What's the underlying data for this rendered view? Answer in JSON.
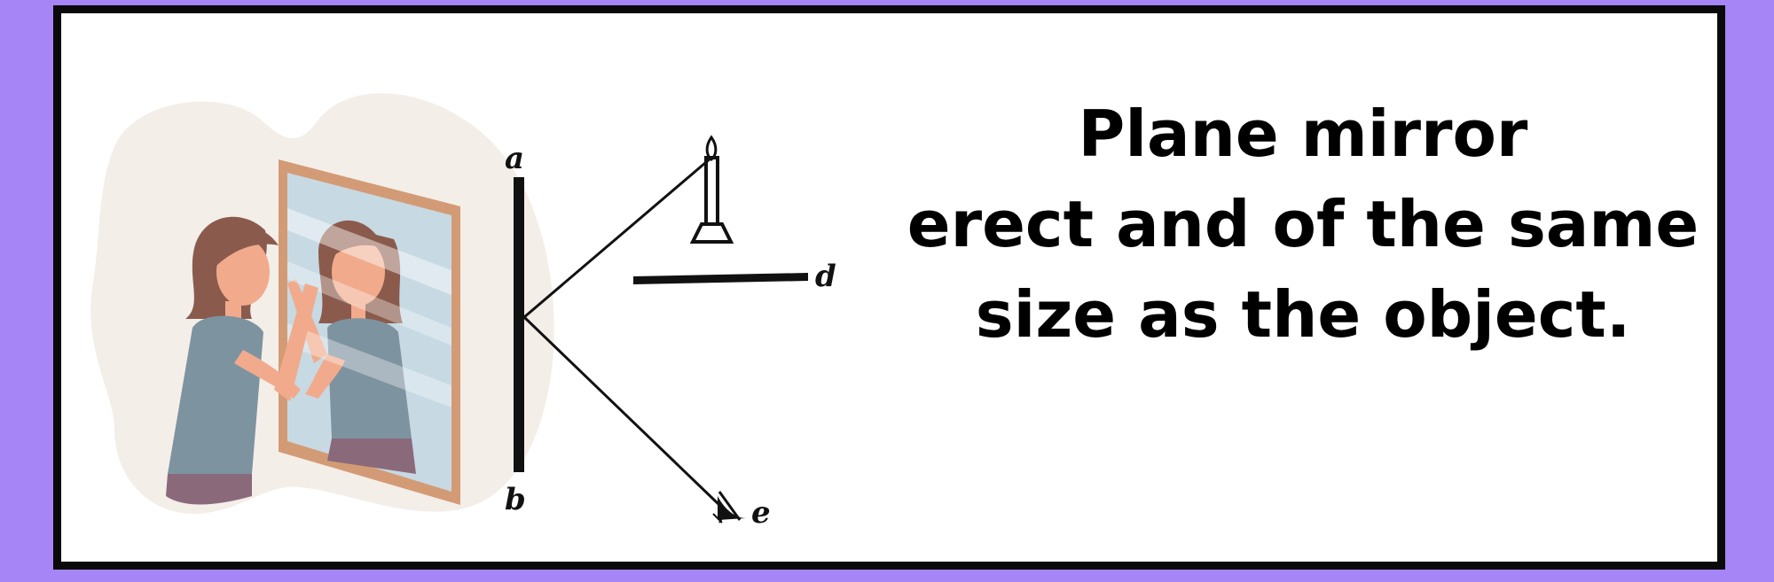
{
  "caption": {
    "line1": "Plane mirror",
    "line2": "erect and of the same",
    "line3": "size as the object."
  },
  "diagram": {
    "labels": {
      "a": "a",
      "b": "b",
      "d": "d",
      "e": "e"
    }
  },
  "colors": {
    "frame": "#a685f7",
    "border": "#0a0a0a",
    "blob": "#f4eee9",
    "mirror_frame": "#d39b75",
    "mirror_glass": "#c7d9e3",
    "hair": "#8a5b4c",
    "skin": "#f1ab8c",
    "shirt": "#7e93a0",
    "pants": "#8a6a7a"
  }
}
